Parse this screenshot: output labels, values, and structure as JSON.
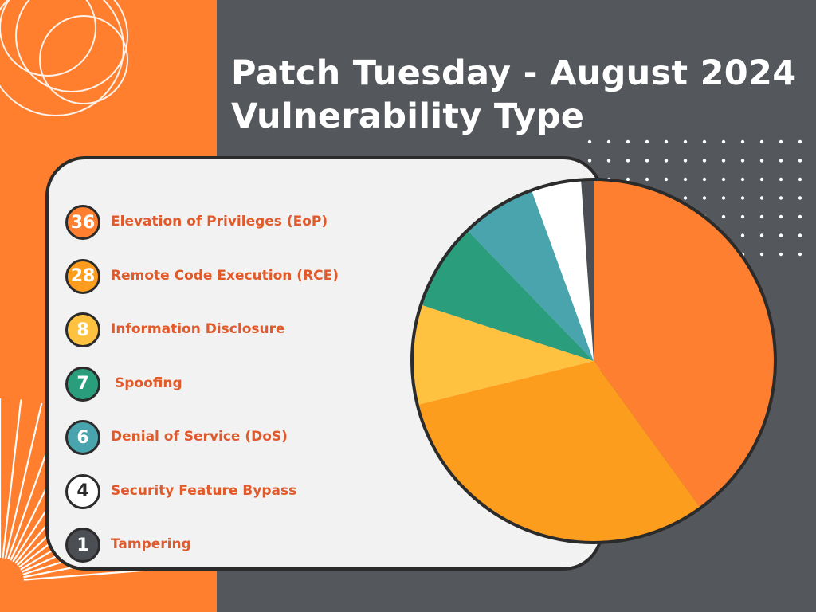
{
  "header": {
    "title_line1": "Patch Tuesday - August 2024",
    "title_line2": "Vulnerability Type"
  },
  "colors": {
    "background_orange": "#ff7f2e",
    "background_gray": "#54575c",
    "outline": "#2b2b2b",
    "label_text": "#e05a2b"
  },
  "chart_data": {
    "type": "pie",
    "title": "Patch Tuesday - August 2024 Vulnerability Type",
    "slices": [
      {
        "label": "Elevation of Privileges (EoP)",
        "display_value": "36",
        "value": 36,
        "color": "#fd7f2f",
        "text_color": "#ffffff"
      },
      {
        "label": "Remote Code Execution (RCE)",
        "display_value": "28",
        "value": 28,
        "color": "#fd9d1e",
        "text_color": "#ffffff"
      },
      {
        "label": "Information Disclosure",
        "display_value": "8",
        "value": 8,
        "color": "#fec140",
        "text_color": "#ffffff"
      },
      {
        "label": "Spoofing",
        "display_value": "7",
        "value": 7,
        "color": "#2a9d7c",
        "text_color": "#ffffff"
      },
      {
        "label": "Denial of Service (DoS)",
        "display_value": "6",
        "value": 6,
        "color": "#4aa4ae",
        "text_color": "#ffffff"
      },
      {
        "label": "Security Feature Bypass",
        "display_value": "4",
        "value": 4,
        "color": "#ffffff",
        "text_color": "#2b2b2b"
      },
      {
        "label": "Tampering",
        "display_value": "1",
        "value": 1,
        "color": "#4b4e53",
        "text_color": "#ffffff"
      }
    ],
    "legend_position": "left"
  }
}
